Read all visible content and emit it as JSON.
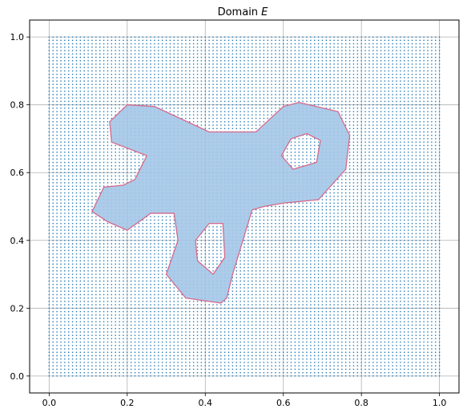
{
  "chart_data": {
    "type": "scatter",
    "title": "Domain E",
    "title_parts": {
      "prefix": "Domain ",
      "italic": "E"
    },
    "xlabel": "",
    "ylabel": "",
    "xlim": [
      -0.05,
      1.05
    ],
    "ylim": [
      -0.05,
      1.05
    ],
    "xticks": [
      0.0,
      0.2,
      0.4,
      0.6,
      0.8,
      1.0
    ],
    "yticks": [
      0.0,
      0.2,
      0.4,
      0.6,
      0.8,
      1.0
    ],
    "xtick_labels": [
      "0.0",
      "0.2",
      "0.4",
      "0.6",
      "0.8",
      "1.0"
    ],
    "ytick_labels": [
      "0.0",
      "0.2",
      "0.4",
      "0.6",
      "0.8",
      "1.0"
    ],
    "grid": true,
    "sample_grid": {
      "start": 0.0,
      "stop": 1.0,
      "count": 101,
      "color": "#1f77b4"
    },
    "domain": {
      "fill_color": "#a4c6e8",
      "edge_color": "#d56a8c",
      "outer_boundary": [
        [
          0.2,
          0.8
        ],
        [
          0.27,
          0.795
        ],
        [
          0.41,
          0.72
        ],
        [
          0.53,
          0.72
        ],
        [
          0.6,
          0.795
        ],
        [
          0.64,
          0.807
        ],
        [
          0.74,
          0.78
        ],
        [
          0.77,
          0.71
        ],
        [
          0.76,
          0.61
        ],
        [
          0.69,
          0.52
        ],
        [
          0.6,
          0.51
        ],
        [
          0.55,
          0.5
        ],
        [
          0.52,
          0.49
        ],
        [
          0.47,
          0.3
        ],
        [
          0.455,
          0.23
        ],
        [
          0.44,
          0.215
        ],
        [
          0.35,
          0.23
        ],
        [
          0.3,
          0.3
        ],
        [
          0.33,
          0.4
        ],
        [
          0.32,
          0.48
        ],
        [
          0.26,
          0.48
        ],
        [
          0.2,
          0.43
        ],
        [
          0.15,
          0.455
        ],
        [
          0.11,
          0.485
        ],
        [
          0.14,
          0.557
        ],
        [
          0.19,
          0.563
        ],
        [
          0.22,
          0.58
        ],
        [
          0.25,
          0.65
        ],
        [
          0.16,
          0.69
        ],
        [
          0.155,
          0.75
        ]
      ],
      "holes": [
        [
          [
            0.41,
            0.45
          ],
          [
            0.445,
            0.45
          ],
          [
            0.45,
            0.35
          ],
          [
            0.42,
            0.3
          ],
          [
            0.38,
            0.34
          ],
          [
            0.375,
            0.4
          ]
        ],
        [
          [
            0.62,
            0.7
          ],
          [
            0.66,
            0.715
          ],
          [
            0.695,
            0.695
          ],
          [
            0.685,
            0.63
          ],
          [
            0.625,
            0.61
          ],
          [
            0.595,
            0.65
          ]
        ]
      ]
    }
  }
}
